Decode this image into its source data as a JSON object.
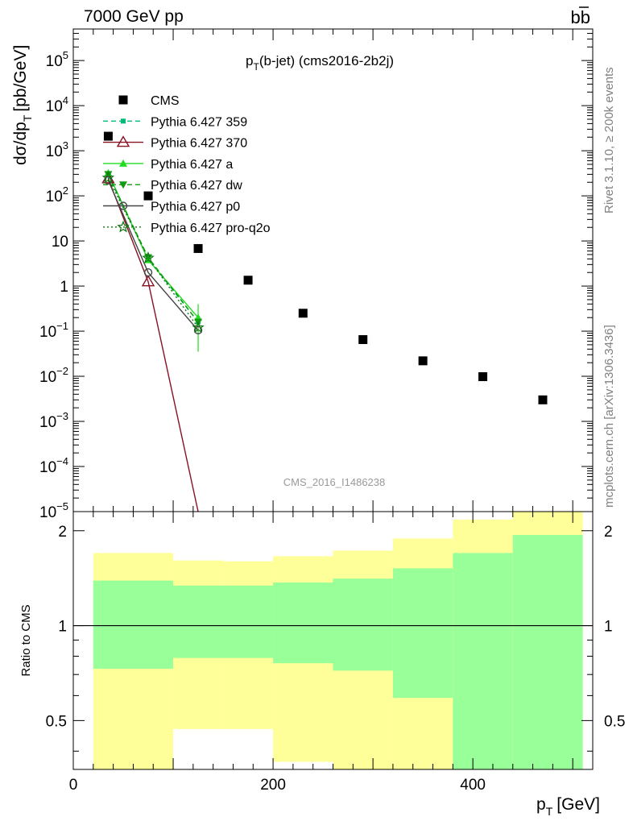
{
  "header": {
    "left": "7000 GeV pp",
    "right_main": "b",
    "right_bar": "b"
  },
  "side_labels": {
    "rivet": "Rivet 3.1.10, ≥ 200k events",
    "mcplots": "mcplots.cern.ch [arXiv:1306.3436]"
  },
  "chart_data": [
    {
      "type": "scatter",
      "panel": "main",
      "title_main": "p",
      "title_sub": "T",
      "title_rest": "(b-jet) (cms2016-2b2j)",
      "watermark": "CMS_2016_I1486238",
      "ylabel": "dσ/dp_T [pb/GeV]",
      "yscale": "log",
      "ylim": [
        1e-05,
        500000
      ],
      "xlim": [
        0,
        520
      ],
      "y_ticks": [
        {
          "value": 100000.0,
          "base": "10",
          "exp": "5"
        },
        {
          "value": 10000.0,
          "base": "10",
          "exp": "4"
        },
        {
          "value": 1000.0,
          "base": "10",
          "exp": "3"
        },
        {
          "value": 100.0,
          "base": "10",
          "exp": "2"
        },
        {
          "value": 10,
          "base": "10",
          "exp": ""
        },
        {
          "value": 1,
          "base": "1",
          "exp": ""
        },
        {
          "value": 0.1,
          "base": "10",
          "exp": "−1"
        },
        {
          "value": 0.01,
          "base": "10",
          "exp": "−2"
        },
        {
          "value": 0.001,
          "base": "10",
          "exp": "−3"
        },
        {
          "value": 0.0001,
          "base": "10",
          "exp": "−4"
        },
        {
          "value": 1e-05,
          "base": "10",
          "exp": "−5"
        }
      ],
      "series": [
        {
          "name": "CMS",
          "color": "#000000",
          "marker": "square",
          "line": "none",
          "x": [
            35,
            75,
            125,
            175,
            230,
            290,
            350,
            410,
            470
          ],
          "y": [
            2100,
            100,
            6.8,
            1.35,
            0.25,
            0.065,
            0.022,
            0.0098,
            0.003
          ]
        },
        {
          "name": "Pythia 6.427 359",
          "color": "#00bb77",
          "marker": "small-square",
          "line": "dashed",
          "x": [
            35,
            75,
            125
          ],
          "y": [
            290,
            4.0,
            0.16
          ]
        },
        {
          "name": "Pythia 6.427 370",
          "color": "#881122",
          "marker": "open-triangle",
          "line": "solid",
          "x": [
            35,
            75,
            125
          ],
          "y": [
            240,
            1.25,
            1e-05
          ]
        },
        {
          "name": "Pythia 6.427 a",
          "color": "#22dd22",
          "marker": "triangle",
          "line": "solid",
          "x": [
            35,
            75,
            125
          ],
          "y": [
            320,
            3.8,
            0.2
          ]
        },
        {
          "name": "Pythia 6.427 dw",
          "color": "#119911",
          "marker": "down-triangle",
          "line": "dashed",
          "x": [
            35,
            75,
            125
          ],
          "y": [
            300,
            4.3,
            0.16
          ]
        },
        {
          "name": "Pythia 6.427 p0",
          "color": "#444444",
          "marker": "open-circle",
          "line": "solid",
          "x": [
            35,
            75,
            125
          ],
          "y": [
            220,
            2.0,
            0.105
          ]
        },
        {
          "name": "Pythia 6.427 pro-q2o",
          "color": "#117711",
          "marker": "open-star",
          "line": "dotted",
          "x": [
            35,
            75,
            125
          ],
          "y": [
            250,
            4.2,
            0.12
          ]
        }
      ]
    },
    {
      "type": "area",
      "panel": "ratio",
      "ylabel": "Ratio to CMS",
      "xlabel_main": "p",
      "xlabel_sub": "T",
      "xlabel_rest": "[GeV]",
      "ylim": [
        0.35,
        2.3
      ],
      "xlim": [
        0,
        520
      ],
      "x_ticks": [
        {
          "value": 0,
          "label": "0"
        },
        {
          "value": 200,
          "label": "200"
        },
        {
          "value": 400,
          "label": "400"
        }
      ],
      "y_ticks": [
        {
          "value": 0.5,
          "label": "0.5"
        },
        {
          "value": 1,
          "label": "1"
        },
        {
          "value": 2,
          "label": "2"
        }
      ],
      "bins": [
        {
          "x0": 20,
          "x1": 100,
          "inner": [
            0.73,
            1.39
          ],
          "outer": [
            0.35,
            1.7
          ]
        },
        {
          "x0": 100,
          "x1": 150,
          "inner": [
            0.79,
            1.34
          ],
          "outer": [
            0.47,
            1.61
          ]
        },
        {
          "x0": 150,
          "x1": 200,
          "inner": [
            0.79,
            1.34
          ],
          "outer": [
            0.47,
            1.6
          ]
        },
        {
          "x0": 200,
          "x1": 260,
          "inner": [
            0.76,
            1.37
          ],
          "outer": [
            0.37,
            1.66
          ]
        },
        {
          "x0": 260,
          "x1": 320,
          "inner": [
            0.72,
            1.41
          ],
          "outer": [
            0.35,
            1.73
          ]
        },
        {
          "x0": 320,
          "x1": 380,
          "inner": [
            0.59,
            1.52
          ],
          "outer": [
            0.35,
            1.89
          ]
        },
        {
          "x0": 380,
          "x1": 440,
          "inner": [
            0.35,
            1.7
          ],
          "outer": [
            0.35,
            2.17
          ]
        },
        {
          "x0": 440,
          "x1": 510,
          "inner": [
            0.35,
            1.94
          ],
          "outer": [
            0.35,
            2.3
          ]
        }
      ]
    }
  ]
}
